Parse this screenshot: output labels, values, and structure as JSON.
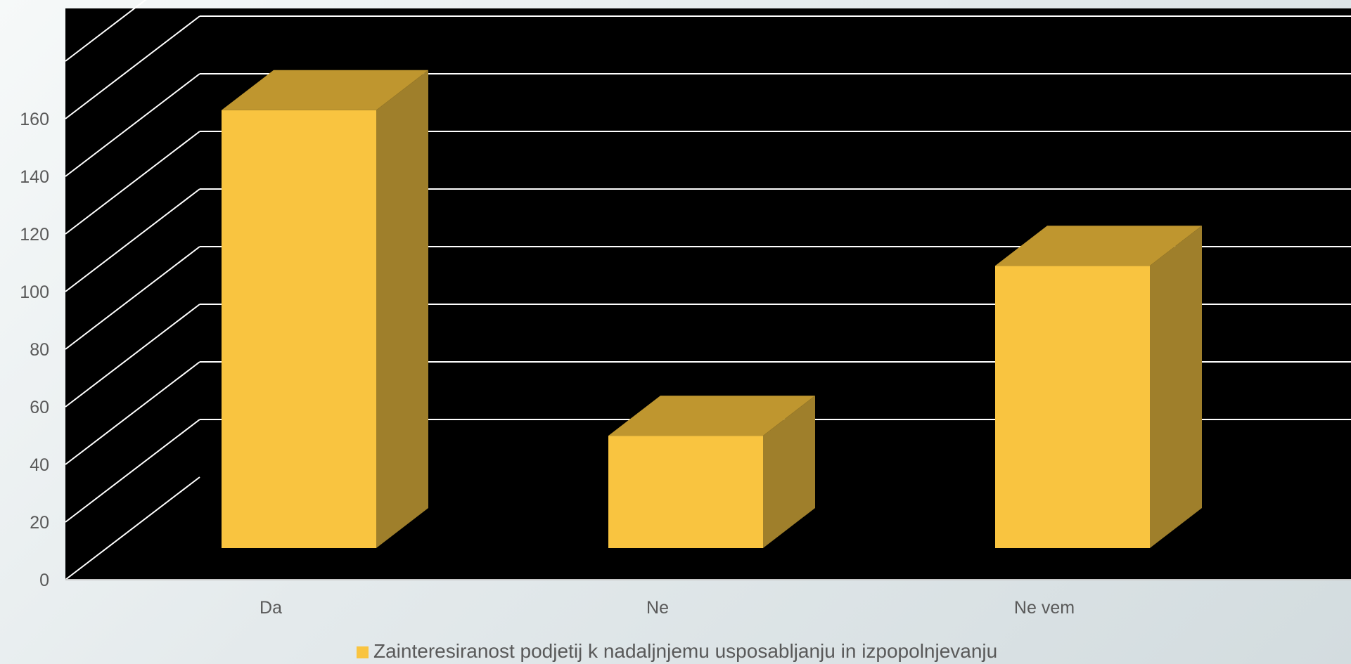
{
  "chart_data": {
    "type": "bar",
    "variant": "3d-column",
    "categories": [
      "Da",
      "Ne",
      "Ne vem"
    ],
    "series": [
      {
        "name": "Zainteresiranost podjetij k nadaljnjemu usposabljanju in izpopolnjevanju",
        "values": [
          152,
          39,
          98
        ],
        "color": "#f9c440"
      }
    ],
    "yticks": [
      0,
      20,
      40,
      60,
      80,
      100,
      120,
      140,
      160
    ],
    "ylim": [
      0,
      195
    ],
    "grid": true,
    "legend_position": "bottom",
    "colors": {
      "plot_background": "#000000",
      "gridline": "#ffffff",
      "bar_front": "#f9c440",
      "bar_top": "#bf962f",
      "bar_side": "#9f7f2b",
      "axis_text": "#595959"
    }
  }
}
